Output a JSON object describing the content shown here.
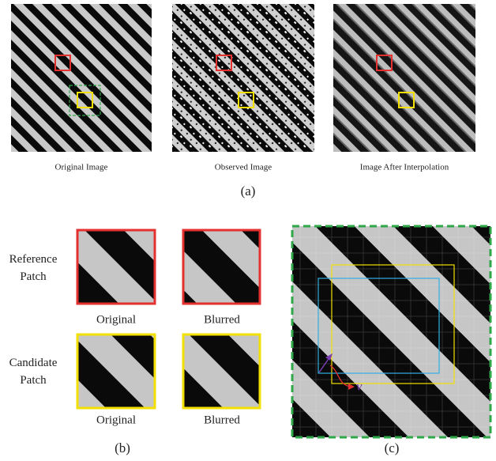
{
  "panel_a": {
    "images": [
      {
        "caption": "Original Image"
      },
      {
        "caption": "Observed Image"
      },
      {
        "caption": "Image After Interpolation"
      }
    ],
    "label": "(a)"
  },
  "panel_b": {
    "rows": [
      {
        "label_lines": [
          "Reference",
          "Patch"
        ],
        "captions": [
          "Original",
          "Blurred"
        ]
      },
      {
        "label_lines": [
          "Candidate",
          "Patch"
        ],
        "captions": [
          "Original",
          "Blurred"
        ]
      }
    ],
    "label": "(b)"
  },
  "panel_c": {
    "vector_label": "v⃗",
    "label": "(c)"
  }
}
